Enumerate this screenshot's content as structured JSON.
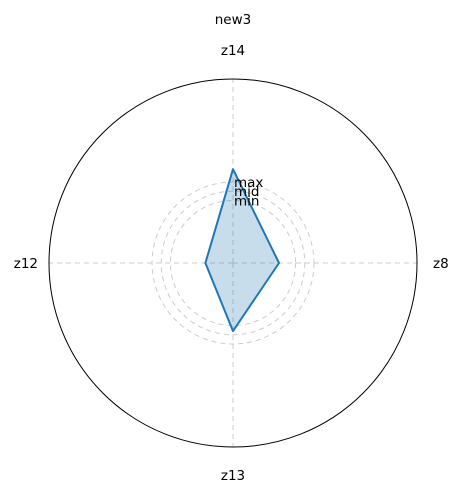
{
  "chart_data": {
    "type": "radar",
    "title": "new3",
    "axes": [
      "z14",
      "z8",
      "z13",
      "z12"
    ],
    "series": [
      {
        "values": [
          0.51,
          0.25,
          0.37,
          0.15
        ],
        "color": "#1f77b4"
      }
    ],
    "rlim": [
      0,
      1
    ],
    "rings": [
      {
        "label": "min",
        "r": 0.34
      },
      {
        "label": "mid",
        "r": 0.39
      },
      {
        "label": "max",
        "r": 0.44
      }
    ],
    "grid": true,
    "colors": {
      "line": "#1f77b4",
      "fill": "#1f77b4",
      "grid": "#cccccc"
    }
  }
}
